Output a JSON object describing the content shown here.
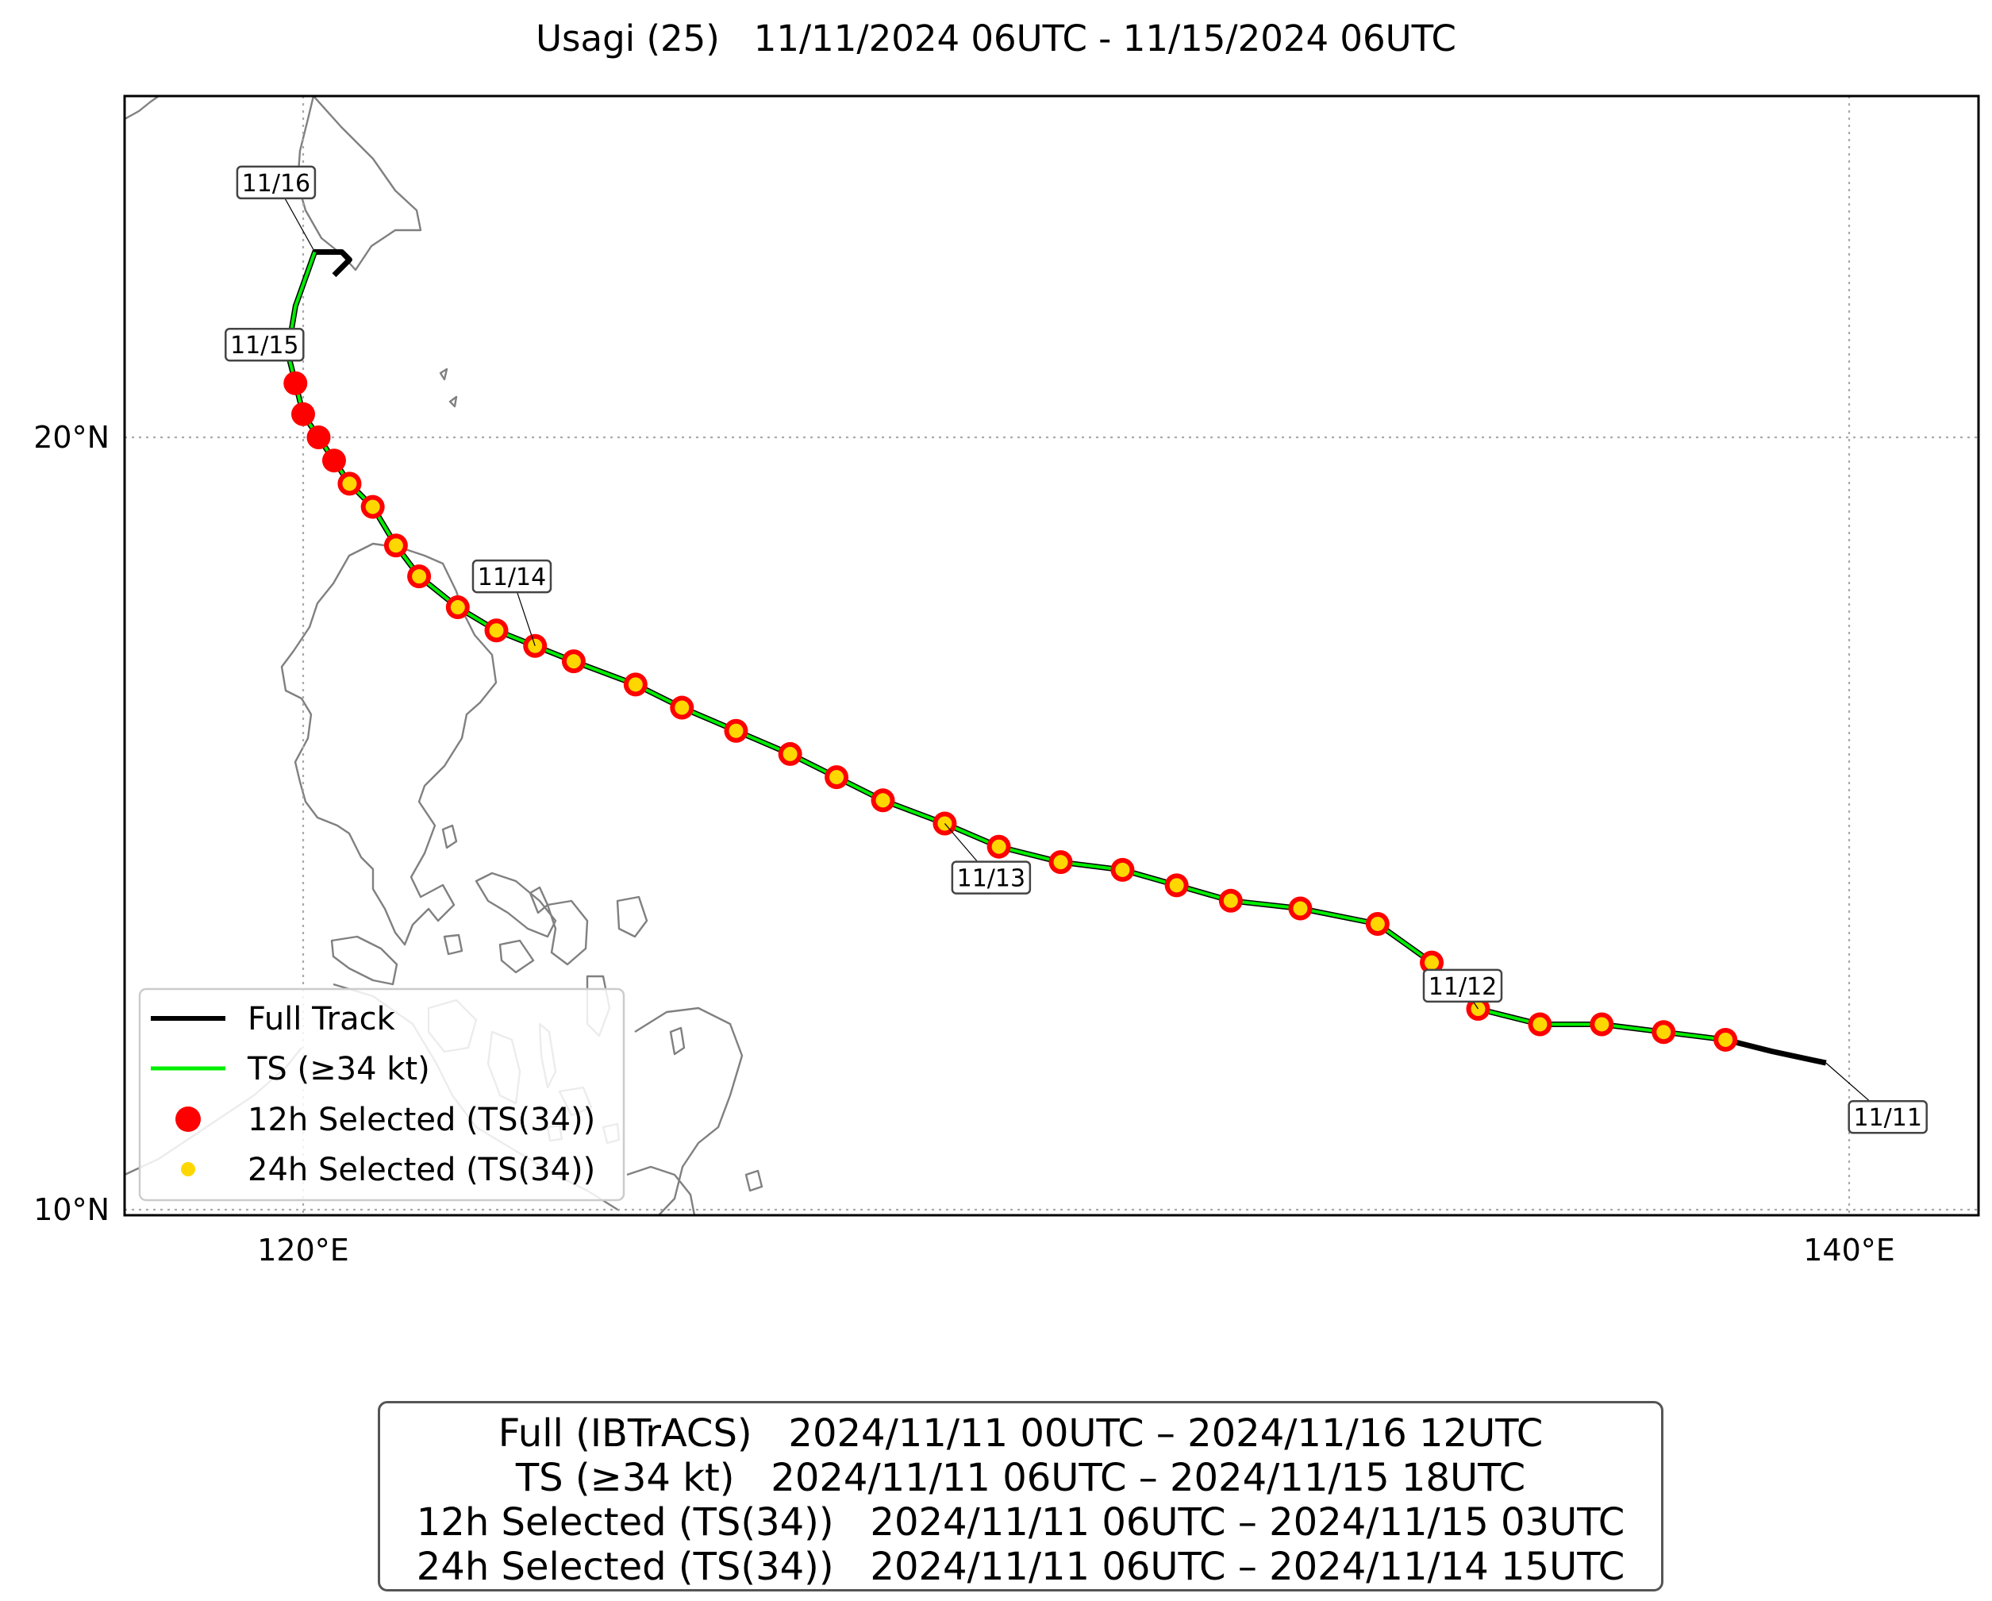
{
  "title": "Usagi (25)   11/11/2024 06UTC - 11/15/2024 06UTC",
  "colors": {
    "full_track": "#000000",
    "ts_track": "#00ee00",
    "selected_12h": "#ff0000",
    "selected_24h": "#ffd700",
    "coastline": "#808080"
  },
  "chart_data": {
    "type": "map-track",
    "projection": "plate carree",
    "lon_range": [
      117.7,
      141.7
    ],
    "lat_range": [
      9.9,
      24.4
    ],
    "grid": "dotted",
    "x_ticks": [
      {
        "value": 120,
        "label": "120°E"
      },
      {
        "value": 140,
        "label": "140°E"
      }
    ],
    "y_ticks": [
      {
        "value": 20,
        "label": "20°N"
      },
      {
        "value": 10,
        "label": "10°N"
      }
    ],
    "full_track": [
      [
        139.7,
        11.9
      ],
      [
        139.0,
        12.05
      ],
      [
        138.4,
        12.2
      ],
      [
        137.6,
        12.3
      ],
      [
        136.8,
        12.4
      ],
      [
        136.0,
        12.4
      ],
      [
        135.2,
        12.6
      ],
      [
        134.6,
        13.2
      ],
      [
        133.9,
        13.7
      ],
      [
        132.9,
        13.9
      ],
      [
        132.0,
        14.0
      ],
      [
        131.3,
        14.2
      ],
      [
        130.6,
        14.4
      ],
      [
        129.8,
        14.5
      ],
      [
        129.0,
        14.7
      ],
      [
        128.3,
        15.0
      ],
      [
        127.5,
        15.3
      ],
      [
        126.9,
        15.6
      ],
      [
        126.3,
        15.9
      ],
      [
        125.6,
        16.2
      ],
      [
        124.9,
        16.5
      ],
      [
        124.3,
        16.8
      ],
      [
        123.5,
        17.1
      ],
      [
        123.0,
        17.3
      ],
      [
        122.5,
        17.5
      ],
      [
        122.0,
        17.8
      ],
      [
        121.5,
        18.2
      ],
      [
        121.2,
        18.6
      ],
      [
        120.9,
        19.1
      ],
      [
        120.6,
        19.4
      ],
      [
        120.4,
        19.7
      ],
      [
        120.2,
        20.0
      ],
      [
        120.0,
        20.3
      ],
      [
        119.9,
        20.7
      ],
      [
        119.8,
        21.1
      ],
      [
        119.9,
        21.7
      ],
      [
        120.15,
        22.4
      ],
      [
        120.5,
        22.4
      ],
      [
        120.6,
        22.3
      ],
      [
        120.4,
        22.1
      ]
    ],
    "ts_track": [
      [
        138.4,
        12.2
      ],
      [
        137.6,
        12.3
      ],
      [
        136.8,
        12.4
      ],
      [
        136.0,
        12.4
      ],
      [
        135.2,
        12.6
      ],
      [
        134.6,
        13.2
      ],
      [
        133.9,
        13.7
      ],
      [
        132.9,
        13.9
      ],
      [
        132.0,
        14.0
      ],
      [
        131.3,
        14.2
      ],
      [
        130.6,
        14.4
      ],
      [
        129.8,
        14.5
      ],
      [
        129.0,
        14.7
      ],
      [
        128.3,
        15.0
      ],
      [
        127.5,
        15.3
      ],
      [
        126.9,
        15.6
      ],
      [
        126.3,
        15.9
      ],
      [
        125.6,
        16.2
      ],
      [
        124.9,
        16.5
      ],
      [
        124.3,
        16.8
      ],
      [
        123.5,
        17.1
      ],
      [
        123.0,
        17.3
      ],
      [
        122.5,
        17.5
      ],
      [
        122.0,
        17.8
      ],
      [
        121.5,
        18.2
      ],
      [
        121.2,
        18.6
      ],
      [
        120.9,
        19.1
      ],
      [
        120.6,
        19.4
      ],
      [
        120.4,
        19.7
      ],
      [
        120.2,
        20.0
      ],
      [
        120.0,
        20.3
      ],
      [
        119.9,
        20.7
      ],
      [
        119.8,
        21.1
      ],
      [
        119.9,
        21.7
      ],
      [
        120.15,
        22.4
      ]
    ],
    "selected_12h": [
      [
        138.4,
        12.2
      ],
      [
        137.6,
        12.3
      ],
      [
        136.8,
        12.4
      ],
      [
        136.0,
        12.4
      ],
      [
        135.2,
        12.6
      ],
      [
        134.6,
        13.2
      ],
      [
        133.9,
        13.7
      ],
      [
        132.9,
        13.9
      ],
      [
        132.0,
        14.0
      ],
      [
        131.3,
        14.2
      ],
      [
        130.6,
        14.4
      ],
      [
        129.8,
        14.5
      ],
      [
        129.0,
        14.7
      ],
      [
        128.3,
        15.0
      ],
      [
        127.5,
        15.3
      ],
      [
        126.9,
        15.6
      ],
      [
        126.3,
        15.9
      ],
      [
        125.6,
        16.2
      ],
      [
        124.9,
        16.5
      ],
      [
        124.3,
        16.8
      ],
      [
        123.5,
        17.1
      ],
      [
        123.0,
        17.3
      ],
      [
        122.5,
        17.5
      ],
      [
        122.0,
        17.8
      ],
      [
        121.5,
        18.2
      ],
      [
        121.2,
        18.6
      ],
      [
        120.9,
        19.1
      ],
      [
        120.6,
        19.4
      ],
      [
        120.4,
        19.7
      ],
      [
        120.2,
        20.0
      ],
      [
        120.0,
        20.3
      ],
      [
        119.9,
        20.7
      ]
    ],
    "selected_24h": [
      [
        138.4,
        12.2
      ],
      [
        137.6,
        12.3
      ],
      [
        136.8,
        12.4
      ],
      [
        136.0,
        12.4
      ],
      [
        135.2,
        12.6
      ],
      [
        134.6,
        13.2
      ],
      [
        133.9,
        13.7
      ],
      [
        132.9,
        13.9
      ],
      [
        132.0,
        14.0
      ],
      [
        131.3,
        14.2
      ],
      [
        130.6,
        14.4
      ],
      [
        129.8,
        14.5
      ],
      [
        129.0,
        14.7
      ],
      [
        128.3,
        15.0
      ],
      [
        127.5,
        15.3
      ],
      [
        126.9,
        15.6
      ],
      [
        126.3,
        15.9
      ],
      [
        125.6,
        16.2
      ],
      [
        124.9,
        16.5
      ],
      [
        124.3,
        16.8
      ],
      [
        123.5,
        17.1
      ],
      [
        123.0,
        17.3
      ],
      [
        122.5,
        17.5
      ],
      [
        122.0,
        17.8
      ],
      [
        121.5,
        18.2
      ],
      [
        121.2,
        18.6
      ],
      [
        120.9,
        19.1
      ],
      [
        120.6,
        19.4
      ]
    ],
    "date_labels": [
      {
        "text": "11/11",
        "lon": 140.5,
        "lat": 11.2,
        "point": [
          139.7,
          11.9
        ]
      },
      {
        "text": "11/12",
        "lon": 135.0,
        "lat": 12.9,
        "point": [
          135.2,
          12.6
        ]
      },
      {
        "text": "11/13",
        "lon": 128.9,
        "lat": 14.3,
        "point": [
          128.3,
          15.0
        ]
      },
      {
        "text": "11/14",
        "lon": 122.7,
        "lat": 18.2,
        "point": [
          123.0,
          17.3
        ]
      },
      {
        "text": "11/15",
        "lon": 119.5,
        "lat": 21.2,
        "point": [
          119.8,
          21.1
        ]
      },
      {
        "text": "11/16",
        "lon": 119.65,
        "lat": 23.3,
        "point": [
          120.15,
          22.4
        ]
      }
    ],
    "legend": {
      "placement": "lower-left",
      "entries": [
        {
          "label": "Full Track",
          "marker": "line",
          "color": "#000000"
        },
        {
          "label": "TS (≥34 kt)",
          "marker": "line",
          "color": "#00ee00"
        },
        {
          "label": "12h Selected (TS(34))",
          "marker": "dot-large",
          "color": "#ff0000"
        },
        {
          "label": "24h Selected (TS(34))",
          "marker": "dot-small",
          "color": "#ffd700"
        }
      ]
    }
  },
  "summary": {
    "lines": [
      "Full (IBTrACS)   2024/11/11 00UTC – 2024/11/16 12UTC",
      "TS (≥34 kt)   2024/11/11 06UTC – 2024/11/15 18UTC",
      "12h Selected (TS(34))   2024/11/11 06UTC – 2024/11/15 03UTC",
      "24h Selected (TS(34))   2024/11/11 06UTC – 2024/11/14 15UTC"
    ]
  }
}
